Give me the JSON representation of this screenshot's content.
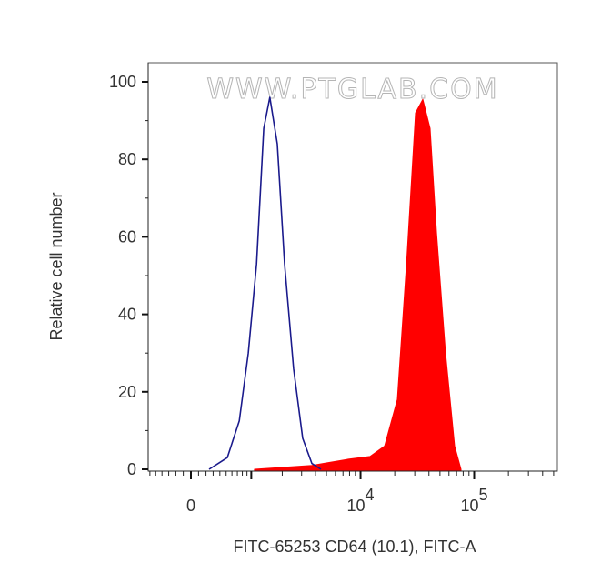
{
  "chart_data": {
    "type": "area",
    "title": "",
    "xlabel": "FITC-65253 CD64 (10.1), FITC-A",
    "ylabel": "Relative cell number",
    "x_scale": "biexponential",
    "ylim": [
      0,
      100
    ],
    "y_ticks": [
      "0",
      "20",
      "40",
      "60",
      "80",
      "100"
    ],
    "x_ticks": [
      {
        "value": 0,
        "label": "0"
      },
      {
        "value": 1000,
        "label": ""
      },
      {
        "value": 10000,
        "label": "10",
        "exp": "4"
      },
      {
        "value": 100000,
        "label": "10",
        "exp": "5"
      }
    ],
    "grid": false,
    "legend": "none",
    "watermark": "WWW.PTGLAB.COM",
    "series": [
      {
        "style": "outline",
        "color": "#1a1a8c",
        "x": [
          243,
          520,
          738,
          929,
          1133,
          1335,
          1530,
          1800,
          2100,
          2540,
          3070,
          3710,
          4470
        ],
        "y": [
          0,
          3,
          12.5,
          30,
          53,
          88,
          96,
          84,
          53,
          26,
          8,
          1.5,
          0
        ]
      },
      {
        "style": "filled",
        "color": "#ff0000",
        "x": [
          1080,
          3710,
          7800,
          12100,
          16300,
          21100,
          25400,
          30500,
          35300,
          40900,
          46600,
          56000,
          67300,
          76600
        ],
        "y": [
          0,
          1,
          2.6,
          3.3,
          6,
          18,
          53,
          92,
          95.5,
          88,
          61,
          30,
          6,
          0
        ]
      }
    ]
  }
}
